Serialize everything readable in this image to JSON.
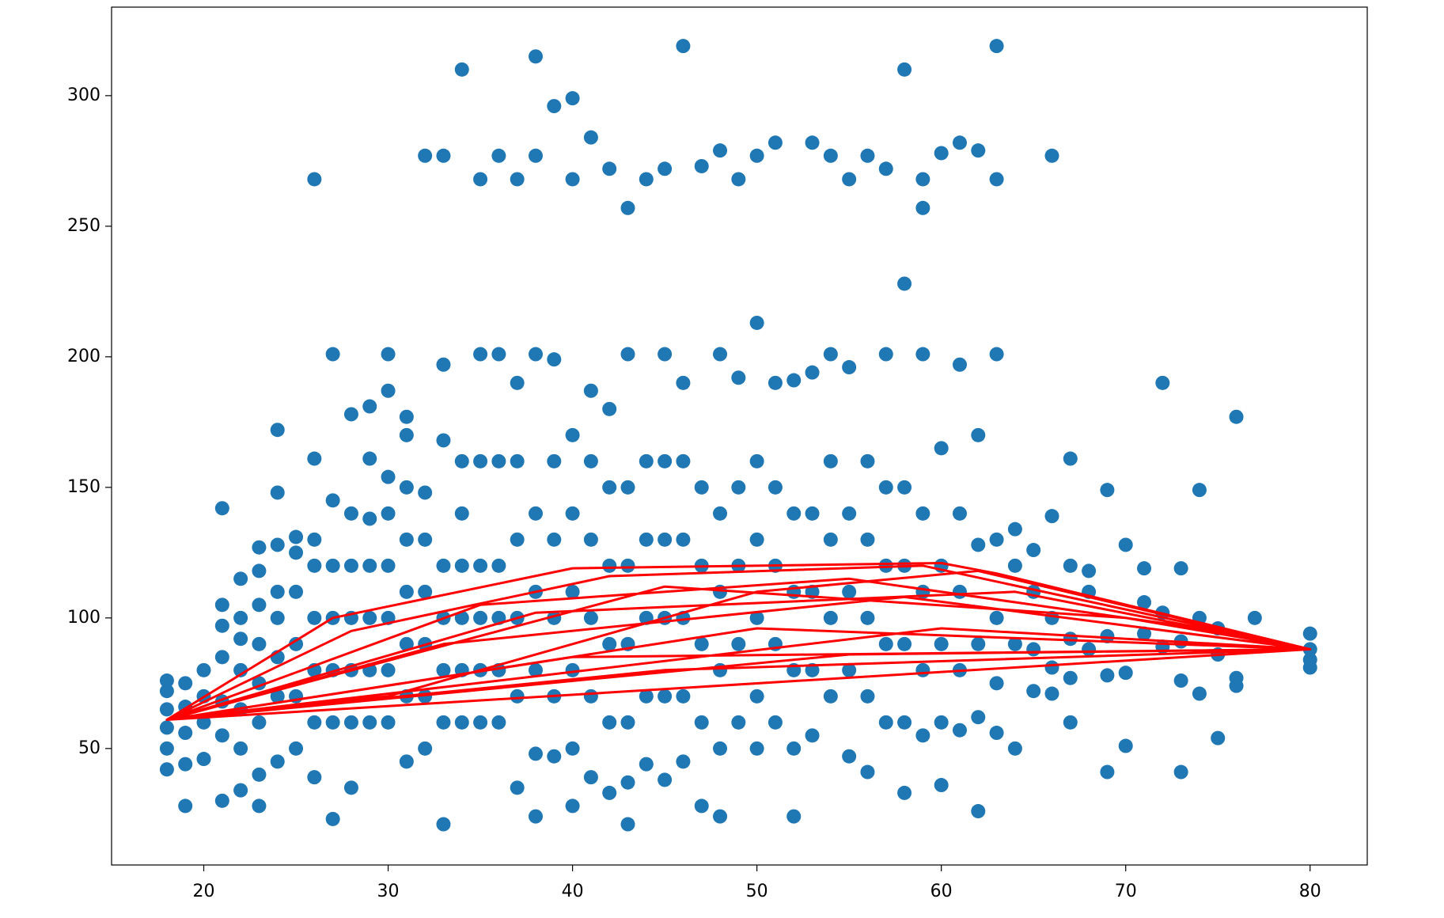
{
  "chart_data": {
    "type": "scatter",
    "xlim": [
      15,
      83.1
    ],
    "ylim": [
      5.4,
      333.9
    ],
    "xticks": [
      20,
      30,
      40,
      50,
      60,
      70,
      80
    ],
    "yticks": [
      50,
      100,
      150,
      200,
      250,
      300
    ],
    "series": [
      {
        "type": "scatter",
        "color": "#1f77b4",
        "x": [
          18,
          18,
          18,
          18,
          18,
          18,
          19,
          19,
          19,
          19,
          19,
          20,
          20,
          20,
          20,
          21,
          21,
          21,
          21,
          21,
          21,
          21,
          22,
          22,
          22,
          22,
          22,
          22,
          22,
          23,
          23,
          23,
          23,
          23,
          23,
          23,
          23,
          24,
          24,
          24,
          24,
          24,
          24,
          24,
          24,
          25,
          25,
          25,
          25,
          25,
          25,
          26,
          26,
          26,
          26,
          26,
          26,
          26,
          26,
          27,
          27,
          27,
          27,
          27,
          27,
          27,
          28,
          28,
          28,
          28,
          28,
          28,
          28,
          29,
          29,
          29,
          29,
          29,
          29,
          29,
          30,
          30,
          30,
          30,
          30,
          30,
          30,
          30,
          31,
          31,
          31,
          31,
          31,
          31,
          31,
          31,
          32,
          32,
          32,
          32,
          32,
          32,
          32,
          33,
          33,
          33,
          33,
          33,
          33,
          33,
          33,
          34,
          34,
          34,
          34,
          34,
          34,
          34,
          35,
          35,
          35,
          35,
          35,
          35,
          35,
          36,
          36,
          36,
          36,
          36,
          36,
          36,
          37,
          37,
          37,
          37,
          37,
          37,
          37,
          38,
          38,
          38,
          38,
          38,
          38,
          38,
          38,
          39,
          39,
          39,
          39,
          39,
          39,
          39,
          40,
          40,
          40,
          40,
          40,
          40,
          40,
          40,
          41,
          41,
          41,
          41,
          41,
          41,
          41,
          42,
          42,
          42,
          42,
          42,
          42,
          42,
          43,
          43,
          43,
          43,
          43,
          43,
          43,
          43,
          44,
          44,
          44,
          44,
          44,
          44,
          45,
          45,
          45,
          45,
          45,
          45,
          45,
          46,
          46,
          46,
          46,
          46,
          46,
          46,
          47,
          47,
          47,
          47,
          47,
          47,
          48,
          48,
          48,
          48,
          48,
          48,
          48,
          49,
          49,
          49,
          49,
          49,
          49,
          50,
          50,
          50,
          50,
          50,
          50,
          50,
          51,
          51,
          51,
          51,
          51,
          51,
          52,
          52,
          52,
          52,
          52,
          52,
          53,
          53,
          53,
          53,
          53,
          53,
          54,
          54,
          54,
          54,
          54,
          54,
          55,
          55,
          55,
          55,
          55,
          55,
          56,
          56,
          56,
          56,
          56,
          56,
          57,
          57,
          57,
          57,
          57,
          57,
          58,
          58,
          58,
          58,
          58,
          58,
          58,
          59,
          59,
          59,
          59,
          59,
          59,
          59,
          60,
          60,
          60,
          60,
          60,
          60,
          61,
          61,
          61,
          61,
          61,
          61,
          62,
          62,
          62,
          62,
          62,
          62,
          63,
          63,
          63,
          63,
          63,
          63,
          63,
          64,
          64,
          64,
          64,
          65,
          65,
          65,
          65,
          66,
          66,
          66,
          66,
          66,
          67,
          67,
          67,
          67,
          67,
          68,
          68,
          68,
          69,
          69,
          69,
          69,
          70,
          70,
          70,
          71,
          71,
          71,
          72,
          72,
          72,
          73,
          73,
          73,
          73,
          74,
          74,
          74,
          75,
          75,
          75,
          76,
          76,
          76,
          77,
          80,
          80,
          80,
          80
        ],
        "values": [
          42,
          50,
          58,
          65,
          72,
          76,
          28,
          44,
          56,
          66,
          75,
          46,
          60,
          70,
          80,
          30,
          55,
          68,
          85,
          97,
          105,
          142,
          34,
          50,
          65,
          80,
          92,
          100,
          115,
          28,
          40,
          60,
          75,
          90,
          105,
          118,
          127,
          45,
          70,
          85,
          100,
          110,
          128,
          148,
          172,
          50,
          70,
          90,
          110,
          125,
          131,
          39,
          60,
          80,
          100,
          120,
          130,
          161,
          268,
          23,
          60,
          80,
          100,
          120,
          145,
          201,
          35,
          60,
          80,
          100,
          120,
          140,
          178,
          60,
          80,
          100,
          120,
          138,
          161,
          181,
          60,
          80,
          100,
          120,
          140,
          154,
          187,
          201,
          45,
          70,
          90,
          110,
          130,
          150,
          170,
          177,
          50,
          70,
          90,
          110,
          130,
          148,
          277,
          21,
          60,
          80,
          100,
          120,
          168,
          197,
          277,
          60,
          80,
          100,
          120,
          140,
          160,
          310,
          60,
          80,
          100,
          120,
          160,
          201,
          268,
          60,
          80,
          100,
          120,
          160,
          201,
          277,
          35,
          70,
          100,
          130,
          160,
          190,
          268,
          24,
          48,
          80,
          110,
          140,
          201,
          277,
          315,
          47,
          70,
          100,
          130,
          160,
          199,
          296,
          28,
          50,
          80,
          110,
          140,
          170,
          268,
          299,
          39,
          70,
          100,
          130,
          160,
          187,
          284,
          33,
          60,
          90,
          120,
          150,
          180,
          272,
          21,
          37,
          60,
          90,
          120,
          150,
          201,
          257,
          44,
          70,
          100,
          130,
          160,
          268,
          38,
          70,
          100,
          130,
          160,
          201,
          272,
          45,
          70,
          100,
          130,
          160,
          190,
          319,
          28,
          60,
          90,
          120,
          150,
          273,
          24,
          50,
          80,
          110,
          140,
          201,
          279,
          60,
          90,
          120,
          150,
          192,
          268,
          50,
          70,
          100,
          130,
          160,
          213,
          277,
          60,
          90,
          120,
          150,
          190,
          282,
          24,
          50,
          80,
          110,
          140,
          191,
          55,
          80,
          110,
          140,
          194,
          282,
          70,
          100,
          130,
          160,
          201,
          277,
          47,
          80,
          110,
          140,
          196,
          268,
          41,
          70,
          100,
          130,
          160,
          277,
          60,
          90,
          120,
          150,
          201,
          272,
          33,
          60,
          90,
          120,
          150,
          228,
          310,
          55,
          80,
          110,
          140,
          201,
          257,
          268,
          36,
          60,
          90,
          120,
          165,
          278,
          57,
          80,
          110,
          140,
          197,
          282,
          26,
          62,
          90,
          128,
          170,
          279,
          56,
          75,
          100,
          130,
          201,
          268,
          319,
          50,
          90,
          120,
          134,
          72,
          88,
          110,
          126,
          71,
          81,
          100,
          139,
          277,
          60,
          77,
          92,
          120,
          161,
          88,
          110,
          118,
          41,
          78,
          93,
          149,
          51,
          79,
          128,
          94,
          106,
          119,
          89,
          102,
          190,
          41,
          76,
          91,
          119,
          71,
          100,
          149,
          54,
          86,
          96,
          74,
          77,
          177,
          100,
          81,
          84,
          88,
          94
        ]
      },
      {
        "type": "line",
        "color": "#ff0000",
        "x": [
          18,
          27,
          40,
          60,
          63,
          80,
          18,
          50,
          80,
          18,
          60,
          80,
          18,
          40,
          80,
          18,
          45,
          80,
          18,
          30,
          50,
          62,
          80,
          18,
          35,
          55,
          75,
          80,
          18,
          45,
          70,
          80,
          18,
          33,
          58,
          80,
          18,
          55,
          80,
          18,
          28,
          42,
          59,
          80,
          18,
          38,
          64,
          80
        ],
        "values": [
          61,
          100,
          119,
          121,
          117,
          88,
          61,
          96,
          88,
          61,
          96,
          88,
          61,
          85,
          88,
          61,
          80,
          88,
          61,
          70,
          110,
          118,
          88,
          61,
          105,
          115,
          95,
          88,
          61,
          112,
          100,
          88,
          61,
          90,
          108,
          88,
          61,
          86,
          88,
          61,
          95,
          116,
          120,
          88,
          61,
          102,
          110,
          88
        ]
      }
    ]
  }
}
